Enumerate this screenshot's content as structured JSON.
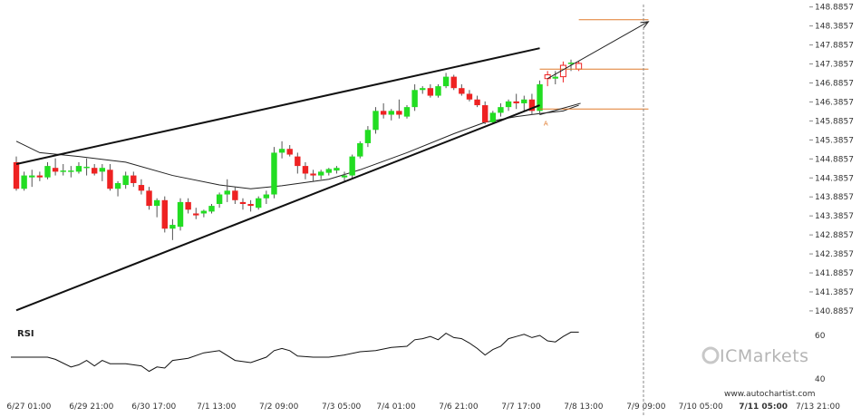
{
  "chart_data": {
    "type": "candlestick",
    "instrument_panel": {
      "y_ticks": [
        "148.8857",
        "148.3857",
        "147.8857",
        "147.3857",
        "146.8857",
        "146.3857",
        "145.8857",
        "145.3857",
        "144.8857",
        "144.3857",
        "143.8857",
        "143.3857",
        "142.8857",
        "142.3857",
        "141.8857",
        "141.3857",
        "140.8857"
      ],
      "y_range": [
        140.55,
        148.95
      ]
    },
    "x_ticks": [
      {
        "label": "6/27 01:00",
        "x": 3
      },
      {
        "label": "6/29 21:00",
        "x": 11
      },
      {
        "label": "6/30 17:00",
        "x": 19
      },
      {
        "label": "7/1 13:00",
        "x": 27
      },
      {
        "label": "7/2 09:00",
        "x": 35
      },
      {
        "label": "7/3 05:00",
        "x": 43
      },
      {
        "label": "7/4 01:00",
        "x": 50
      },
      {
        "label": "7/6 21:00",
        "x": 58
      },
      {
        "label": "7/7 17:00",
        "x": 66
      },
      {
        "label": "7/8 13:00",
        "x": 74
      },
      {
        "label": "7/9 09:00",
        "x": 82
      },
      {
        "label": "7/10 05:00",
        "x": 89
      },
      {
        "label": "7/11 05:00",
        "x": 97,
        "bold": true
      },
      {
        "label": "7/13 21:00",
        "x": 104
      }
    ],
    "candles": [
      {
        "x": 0,
        "o": 144.8,
        "h": 144.95,
        "l": 144.05,
        "c": 144.1
      },
      {
        "x": 1,
        "o": 144.1,
        "h": 144.55,
        "l": 144.05,
        "c": 144.45
      },
      {
        "x": 2,
        "o": 144.4,
        "h": 144.6,
        "l": 144.15,
        "c": 144.45
      },
      {
        "x": 3,
        "o": 144.45,
        "h": 144.55,
        "l": 144.3,
        "c": 144.4
      },
      {
        "x": 4,
        "o": 144.4,
        "h": 144.8,
        "l": 144.35,
        "c": 144.7
      },
      {
        "x": 5,
        "o": 144.65,
        "h": 144.9,
        "l": 144.45,
        "c": 144.55
      },
      {
        "x": 6,
        "o": 144.55,
        "h": 144.75,
        "l": 144.45,
        "c": 144.58
      },
      {
        "x": 7,
        "o": 144.55,
        "h": 144.7,
        "l": 144.4,
        "c": 144.58
      },
      {
        "x": 8,
        "o": 144.55,
        "h": 144.8,
        "l": 144.5,
        "c": 144.7
      },
      {
        "x": 9,
        "o": 144.65,
        "h": 144.9,
        "l": 144.45,
        "c": 144.68
      },
      {
        "x": 10,
        "o": 144.65,
        "h": 144.75,
        "l": 144.45,
        "c": 144.5
      },
      {
        "x": 11,
        "o": 144.55,
        "h": 144.75,
        "l": 144.3,
        "c": 144.65
      },
      {
        "x": 12,
        "o": 144.6,
        "h": 144.75,
        "l": 144.05,
        "c": 144.1
      },
      {
        "x": 13,
        "o": 144.1,
        "h": 144.3,
        "l": 143.9,
        "c": 144.25
      },
      {
        "x": 14,
        "o": 144.2,
        "h": 144.55,
        "l": 144.1,
        "c": 144.45
      },
      {
        "x": 15,
        "o": 144.45,
        "h": 144.55,
        "l": 144.15,
        "c": 144.25
      },
      {
        "x": 16,
        "o": 144.2,
        "h": 144.35,
        "l": 143.95,
        "c": 144.05
      },
      {
        "x": 17,
        "o": 144.05,
        "h": 144.15,
        "l": 143.55,
        "c": 143.65
      },
      {
        "x": 18,
        "o": 143.65,
        "h": 143.85,
        "l": 143.35,
        "c": 143.8
      },
      {
        "x": 19,
        "o": 143.8,
        "h": 143.9,
        "l": 142.95,
        "c": 143.05
      },
      {
        "x": 20,
        "o": 143.05,
        "h": 143.3,
        "l": 142.75,
        "c": 143.15
      },
      {
        "x": 21,
        "o": 143.1,
        "h": 143.85,
        "l": 143.0,
        "c": 143.75
      },
      {
        "x": 22,
        "o": 143.75,
        "h": 143.85,
        "l": 143.45,
        "c": 143.55
      },
      {
        "x": 23,
        "o": 143.45,
        "h": 143.6,
        "l": 143.3,
        "c": 143.4
      },
      {
        "x": 24,
        "o": 143.45,
        "h": 143.55,
        "l": 143.35,
        "c": 143.52
      },
      {
        "x": 25,
        "o": 143.5,
        "h": 143.7,
        "l": 143.45,
        "c": 143.65
      },
      {
        "x": 26,
        "o": 143.7,
        "h": 144.0,
        "l": 143.6,
        "c": 143.95
      },
      {
        "x": 27,
        "o": 143.95,
        "h": 144.35,
        "l": 143.75,
        "c": 144.05
      },
      {
        "x": 28,
        "o": 144.05,
        "h": 144.15,
        "l": 143.7,
        "c": 143.8
      },
      {
        "x": 29,
        "o": 143.75,
        "h": 143.85,
        "l": 143.55,
        "c": 143.7
      },
      {
        "x": 30,
        "o": 143.7,
        "h": 143.8,
        "l": 143.5,
        "c": 143.65
      },
      {
        "x": 31,
        "o": 143.6,
        "h": 143.9,
        "l": 143.55,
        "c": 143.85
      },
      {
        "x": 32,
        "o": 143.85,
        "h": 144.05,
        "l": 143.7,
        "c": 143.95
      },
      {
        "x": 33,
        "o": 143.95,
        "h": 145.2,
        "l": 143.85,
        "c": 145.05
      },
      {
        "x": 34,
        "o": 145.05,
        "h": 145.35,
        "l": 144.9,
        "c": 145.15
      },
      {
        "x": 35,
        "o": 145.15,
        "h": 145.25,
        "l": 144.95,
        "c": 145.0
      },
      {
        "x": 36,
        "o": 144.95,
        "h": 145.05,
        "l": 144.5,
        "c": 144.7
      },
      {
        "x": 37,
        "o": 144.7,
        "h": 144.8,
        "l": 144.35,
        "c": 144.5
      },
      {
        "x": 38,
        "o": 144.5,
        "h": 144.6,
        "l": 144.3,
        "c": 144.45
      },
      {
        "x": 39,
        "o": 144.45,
        "h": 144.6,
        "l": 144.35,
        "c": 144.55
      },
      {
        "x": 40,
        "o": 144.52,
        "h": 144.65,
        "l": 144.45,
        "c": 144.62
      },
      {
        "x": 41,
        "o": 144.58,
        "h": 144.7,
        "l": 144.5,
        "c": 144.65
      },
      {
        "x": 42,
        "o": 144.4,
        "h": 144.55,
        "l": 144.3,
        "c": 144.45
      },
      {
        "x": 43,
        "o": 144.45,
        "h": 145.0,
        "l": 144.35,
        "c": 144.95
      },
      {
        "x": 44,
        "o": 144.95,
        "h": 145.35,
        "l": 144.9,
        "c": 145.3
      },
      {
        "x": 45,
        "o": 145.3,
        "h": 145.75,
        "l": 145.2,
        "c": 145.65
      },
      {
        "x": 46,
        "o": 145.65,
        "h": 146.25,
        "l": 145.55,
        "c": 146.15
      },
      {
        "x": 47,
        "o": 146.15,
        "h": 146.35,
        "l": 145.95,
        "c": 146.05
      },
      {
        "x": 48,
        "o": 146.05,
        "h": 146.2,
        "l": 145.9,
        "c": 146.15
      },
      {
        "x": 49,
        "o": 146.15,
        "h": 146.45,
        "l": 145.95,
        "c": 146.05
      },
      {
        "x": 50,
        "o": 146.0,
        "h": 146.3,
        "l": 145.95,
        "c": 146.25
      },
      {
        "x": 51,
        "o": 146.25,
        "h": 146.85,
        "l": 146.15,
        "c": 146.7
      },
      {
        "x": 52,
        "o": 146.7,
        "h": 146.8,
        "l": 146.6,
        "c": 146.75
      },
      {
        "x": 53,
        "o": 146.75,
        "h": 146.85,
        "l": 146.5,
        "c": 146.55
      },
      {
        "x": 54,
        "o": 146.55,
        "h": 146.85,
        "l": 146.5,
        "c": 146.8
      },
      {
        "x": 55,
        "o": 146.8,
        "h": 147.15,
        "l": 146.75,
        "c": 147.05
      },
      {
        "x": 56,
        "o": 147.05,
        "h": 147.1,
        "l": 146.7,
        "c": 146.75
      },
      {
        "x": 57,
        "o": 146.75,
        "h": 146.85,
        "l": 146.55,
        "c": 146.6
      },
      {
        "x": 58,
        "o": 146.6,
        "h": 146.7,
        "l": 146.4,
        "c": 146.45
      },
      {
        "x": 59,
        "o": 146.45,
        "h": 146.55,
        "l": 146.25,
        "c": 146.3
      },
      {
        "x": 60,
        "o": 146.3,
        "h": 146.4,
        "l": 145.8,
        "c": 145.85
      },
      {
        "x": 61,
        "o": 145.85,
        "h": 146.15,
        "l": 145.8,
        "c": 146.1
      },
      {
        "x": 62,
        "o": 146.1,
        "h": 146.35,
        "l": 146.0,
        "c": 146.25
      },
      {
        "x": 63,
        "o": 146.25,
        "h": 146.45,
        "l": 146.15,
        "c": 146.4
      },
      {
        "x": 64,
        "o": 146.4,
        "h": 146.6,
        "l": 146.2,
        "c": 146.35
      },
      {
        "x": 65,
        "o": 146.35,
        "h": 146.55,
        "l": 146.15,
        "c": 146.45
      },
      {
        "x": 66,
        "o": 146.45,
        "h": 146.6,
        "l": 146.05,
        "c": 146.15
      },
      {
        "x": 67,
        "o": 146.15,
        "h": 146.95,
        "l": 146.05,
        "c": 146.85
      },
      {
        "x": 68,
        "o": 147.0,
        "h": 147.2,
        "l": 146.8,
        "c": 147.1,
        "hollow": true
      },
      {
        "x": 69,
        "o": 147.0,
        "h": 147.2,
        "l": 146.85,
        "c": 147.05
      },
      {
        "x": 70,
        "o": 147.05,
        "h": 147.45,
        "l": 146.9,
        "c": 147.35,
        "hollow": true
      },
      {
        "x": 71,
        "o": 147.4,
        "h": 147.5,
        "l": 147.2,
        "c": 147.42
      },
      {
        "x": 72,
        "o": 147.4,
        "h": 147.45,
        "l": 147.2,
        "c": 147.25,
        "hollow": true
      }
    ],
    "moving_average": [
      {
        "x": 0,
        "y": 145.35
      },
      {
        "x": 3,
        "y": 145.05
      },
      {
        "x": 8,
        "y": 144.95
      },
      {
        "x": 14,
        "y": 144.8
      },
      {
        "x": 20,
        "y": 144.45
      },
      {
        "x": 26,
        "y": 144.2
      },
      {
        "x": 30,
        "y": 144.1
      },
      {
        "x": 34,
        "y": 144.18
      },
      {
        "x": 40,
        "y": 144.35
      },
      {
        "x": 44,
        "y": 144.6
      },
      {
        "x": 50,
        "y": 145.05
      },
      {
        "x": 56,
        "y": 145.55
      },
      {
        "x": 60,
        "y": 145.85
      },
      {
        "x": 64,
        "y": 146.0
      },
      {
        "x": 67,
        "y": 146.08
      },
      {
        "x": 70,
        "y": 146.15
      },
      {
        "x": 72,
        "y": 146.3
      }
    ],
    "channel_upper": {
      "x1": 0,
      "y1": 144.75,
      "x2": 67,
      "y2": 147.8
    },
    "channel_lower": {
      "x1": 0,
      "y1": 140.9,
      "x2": 67,
      "y2": 146.3
    },
    "projection_arrow": {
      "x1": 68,
      "y1": 147.0,
      "x2": 83,
      "y2": 148.5
    },
    "projection_lower": {
      "x1": 67,
      "y1": 146.05,
      "x2": 72,
      "y2": 146.35
    },
    "resistance_level": {
      "y": 148.55,
      "x1": 72,
      "x2": 83
    },
    "current_level": {
      "y": 147.25,
      "x1": 67,
      "x2": 83
    },
    "support_level": {
      "y": 146.2,
      "x1": 67,
      "x2": 83
    },
    "marker_label": {
      "text": "A",
      "x": 66,
      "y": 146.05
    },
    "rsi_panel": {
      "label": "RSI",
      "y_ticks": [
        "60",
        "40"
      ],
      "y_range": [
        30,
        70
      ],
      "values": [
        {
          "x": 0,
          "y": 50.0
        },
        {
          "x": 4,
          "y": 50.0
        },
        {
          "x": 5,
          "y": 49.0
        },
        {
          "x": 7,
          "y": 45.5
        },
        {
          "x": 8,
          "y": 46.5
        },
        {
          "x": 9,
          "y": 48.5
        },
        {
          "x": 10,
          "y": 46.0
        },
        {
          "x": 11,
          "y": 48.5
        },
        {
          "x": 12,
          "y": 47.0
        },
        {
          "x": 14,
          "y": 47.0
        },
        {
          "x": 16,
          "y": 46.0
        },
        {
          "x": 17,
          "y": 43.5
        },
        {
          "x": 18,
          "y": 45.5
        },
        {
          "x": 19,
          "y": 45.0
        },
        {
          "x": 20,
          "y": 48.5
        },
        {
          "x": 22,
          "y": 49.5
        },
        {
          "x": 24,
          "y": 52.0
        },
        {
          "x": 26,
          "y": 53.0
        },
        {
          "x": 28,
          "y": 48.5
        },
        {
          "x": 30,
          "y": 47.5
        },
        {
          "x": 32,
          "y": 50.0
        },
        {
          "x": 33,
          "y": 53.0
        },
        {
          "x": 34,
          "y": 54.0
        },
        {
          "x": 35,
          "y": 53.0
        },
        {
          "x": 36,
          "y": 50.5
        },
        {
          "x": 38,
          "y": 50.0
        },
        {
          "x": 40,
          "y": 50.0
        },
        {
          "x": 42,
          "y": 51.0
        },
        {
          "x": 44,
          "y": 52.5
        },
        {
          "x": 46,
          "y": 53.0
        },
        {
          "x": 48,
          "y": 54.5
        },
        {
          "x": 50,
          "y": 55.0
        },
        {
          "x": 51,
          "y": 58.0
        },
        {
          "x": 52,
          "y": 58.5
        },
        {
          "x": 53,
          "y": 59.5
        },
        {
          "x": 54,
          "y": 58.0
        },
        {
          "x": 55,
          "y": 61.0
        },
        {
          "x": 56,
          "y": 59.0
        },
        {
          "x": 57,
          "y": 58.5
        },
        {
          "x": 58,
          "y": 56.5
        },
        {
          "x": 59,
          "y": 54.0
        },
        {
          "x": 60,
          "y": 51.0
        },
        {
          "x": 61,
          "y": 53.5
        },
        {
          "x": 62,
          "y": 55.0
        },
        {
          "x": 63,
          "y": 58.5
        },
        {
          "x": 64,
          "y": 59.5
        },
        {
          "x": 65,
          "y": 60.5
        },
        {
          "x": 66,
          "y": 59.0
        },
        {
          "x": 67,
          "y": 60.0
        },
        {
          "x": 68,
          "y": 57.5
        },
        {
          "x": 69,
          "y": 57.0
        },
        {
          "x": 70,
          "y": 59.5
        },
        {
          "x": 71,
          "y": 61.5
        },
        {
          "x": 72,
          "y": 61.5
        }
      ]
    }
  },
  "watermark": {
    "text": "ICMarkets",
    "color": "#b5b5b5"
  },
  "site": {
    "text": "www.autochartist.com"
  },
  "colors": {
    "bull": "#22dd22",
    "bear": "#ee2222",
    "hollow": "#ee2222",
    "ma": "#222222",
    "channel": "#111111",
    "level": "#e07a2b",
    "vline": "#8a8a8a",
    "grid": "#d8d8d8"
  }
}
